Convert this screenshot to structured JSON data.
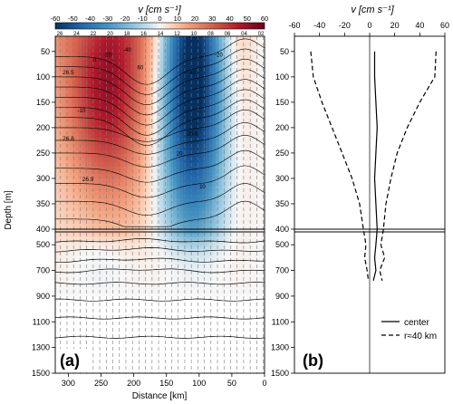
{
  "colors": {
    "east_extreme": "#67001f",
    "zero": "#f7f7f7",
    "west_extreme": "#053061",
    "cast_line": "#7a7a7a",
    "contour": "#000000",
    "axis": "#000000"
  },
  "chart_data": [
    {
      "type": "heatmap",
      "panel_label": "(a)",
      "colorbar_label": "v [cm s⁻¹]",
      "colorbar_ticks": [
        "-60",
        "-50",
        "-40",
        "-30",
        "-20",
        "-10",
        "0",
        "10",
        "20",
        "30",
        "40",
        "50",
        "60"
      ],
      "colorbar_range": [
        -60,
        60
      ],
      "xlabel": "Distance [km]",
      "ylabel": "Depth [m]",
      "xlim": [
        320,
        0
      ],
      "x_ticks": [
        300,
        250,
        200,
        150,
        100,
        50,
        0
      ],
      "y_ticks": [
        50,
        100,
        150,
        200,
        250,
        300,
        350,
        400,
        500,
        700,
        900,
        1100,
        1300,
        1500
      ],
      "upper_depth_range": [
        20,
        400
      ],
      "lower_depth_range": [
        400,
        1500
      ],
      "cast_numbers": [
        "26",
        "24",
        "22",
        "20",
        "18",
        "16",
        "14",
        "12",
        "10",
        "08",
        "06",
        "04",
        "02"
      ],
      "cast_distances_km": [
        312,
        302,
        292,
        282,
        272,
        262,
        252,
        242,
        232,
        222,
        212,
        202,
        192,
        182,
        172,
        162,
        152,
        142,
        132,
        122,
        112,
        102,
        92,
        82,
        72,
        62,
        52,
        42,
        32,
        22,
        12,
        2
      ],
      "density_labels": [
        "26.5",
        "26.8",
        "26.9",
        "26.8"
      ],
      "speed_labels": [
        "-20",
        "-40",
        "60",
        "40",
        "-20",
        "-10",
        "20",
        "0",
        "10"
      ],
      "velocity_field": {
        "eastward_core": {
          "center_km": 245,
          "depth_m": 90,
          "max_cm_s": 58
        },
        "westward_core": {
          "center_km": 110,
          "depth_m": 130,
          "min_cm_s": -58
        }
      }
    },
    {
      "type": "line",
      "panel_label": "(b)",
      "xlabel_top": "v [cm s⁻¹]",
      "xlim": [
        -60,
        60
      ],
      "x_ticks": [
        "-60",
        "-40",
        "-20",
        "0",
        "20",
        "40",
        "60"
      ],
      "y_ticks": [
        50,
        100,
        150,
        200,
        250,
        300,
        350,
        400,
        500,
        700,
        900,
        1100,
        1300,
        1500
      ],
      "series": [
        {
          "name": "center",
          "style": "solid",
          "points": [
            [
              4,
              50
            ],
            [
              4,
              100
            ],
            [
              5,
              150
            ],
            [
              6,
              200
            ],
            [
              5,
              250
            ],
            [
              4,
              300
            ],
            [
              5,
              350
            ],
            [
              6,
              400
            ],
            [
              5,
              500
            ],
            [
              4,
              600
            ],
            [
              5,
              700
            ],
            [
              3,
              780
            ]
          ]
        },
        {
          "name": "r≈40 km",
          "style": "dashed",
          "side": "east",
          "points": [
            [
              53,
              50
            ],
            [
              52,
              100
            ],
            [
              40,
              150
            ],
            [
              30,
              200
            ],
            [
              22,
              250
            ],
            [
              17,
              300
            ],
            [
              13,
              350
            ],
            [
              11,
              400
            ],
            [
              9,
              500
            ],
            [
              12,
              600
            ],
            [
              8,
              700
            ],
            [
              10,
              780
            ]
          ]
        },
        {
          "name": "",
          "style": "dashed",
          "side": "west",
          "points": [
            [
              -47,
              50
            ],
            [
              -45,
              100
            ],
            [
              -38,
              150
            ],
            [
              -30,
              200
            ],
            [
              -22,
              250
            ],
            [
              -14,
              300
            ],
            [
              -8,
              350
            ],
            [
              -5,
              400
            ],
            [
              -3,
              500
            ],
            [
              -4,
              600
            ],
            [
              -2,
              700
            ],
            [
              -1,
              780
            ]
          ]
        }
      ],
      "legend": [
        {
          "label": "center",
          "style": "solid"
        },
        {
          "label": "r≈40 km",
          "style": "dashed"
        }
      ],
      "legend_position": "lower-right"
    }
  ]
}
